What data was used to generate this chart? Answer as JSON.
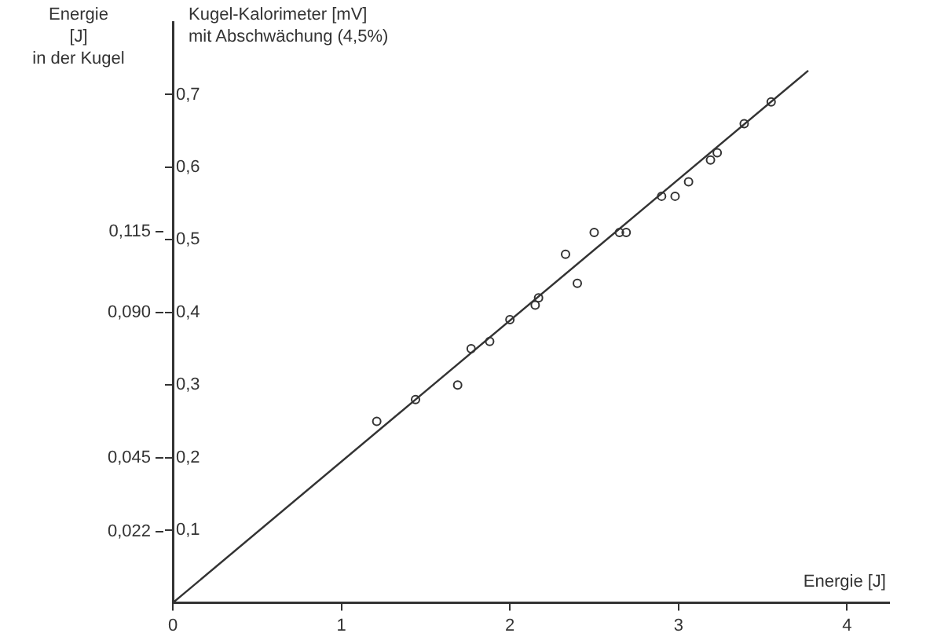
{
  "chart_data": {
    "type": "scatter",
    "xlabel": "Energie [J]",
    "ylabel": "Kugel-Kalorimeter [mV]\nmit Abschwächung (4,5%)",
    "y2label": "Energie\n[J]\nin der Kugel",
    "xlim": [
      0,
      4.25
    ],
    "xticks": [
      0,
      1,
      2,
      3,
      4
    ],
    "ylim": [
      0,
      0.8
    ],
    "yticks": [
      {
        "value": 0.1,
        "label": "0,1"
      },
      {
        "value": 0.2,
        "label": "0,2"
      },
      {
        "value": 0.3,
        "label": "0,3"
      },
      {
        "value": 0.4,
        "label": "0,4"
      },
      {
        "value": 0.5,
        "label": "0,5"
      },
      {
        "value": 0.6,
        "label": "0,6"
      },
      {
        "value": 0.7,
        "label": "0,7"
      }
    ],
    "y2lim": [
      0,
      0.18
    ],
    "y2ticks": [
      {
        "value": 0.022,
        "label": "0,022"
      },
      {
        "value": 0.045,
        "label": "0,045"
      },
      {
        "value": 0.09,
        "label": "0,090"
      },
      {
        "value": 0.115,
        "label": "0,115"
      }
    ],
    "grid": false,
    "legend": false,
    "series": [
      {
        "marker": "circle",
        "color": "#333333",
        "x": [
          1.21,
          1.44,
          1.69,
          1.77,
          1.88,
          2.0,
          2.15,
          2.17,
          2.33,
          2.4,
          2.5,
          2.65,
          2.69,
          2.9,
          2.98,
          3.06,
          3.19,
          3.23,
          3.39,
          3.55
        ],
        "values": [
          0.25,
          0.28,
          0.3,
          0.35,
          0.36,
          0.39,
          0.41,
          0.42,
          0.48,
          0.44,
          0.51,
          0.51,
          0.51,
          0.56,
          0.56,
          0.58,
          0.61,
          0.62,
          0.66,
          0.69
        ]
      },
      {
        "type": "line",
        "marker": "none",
        "color": "#333333",
        "x": [
          0,
          3.77
        ],
        "values": [
          0,
          0.733
        ]
      }
    ]
  }
}
